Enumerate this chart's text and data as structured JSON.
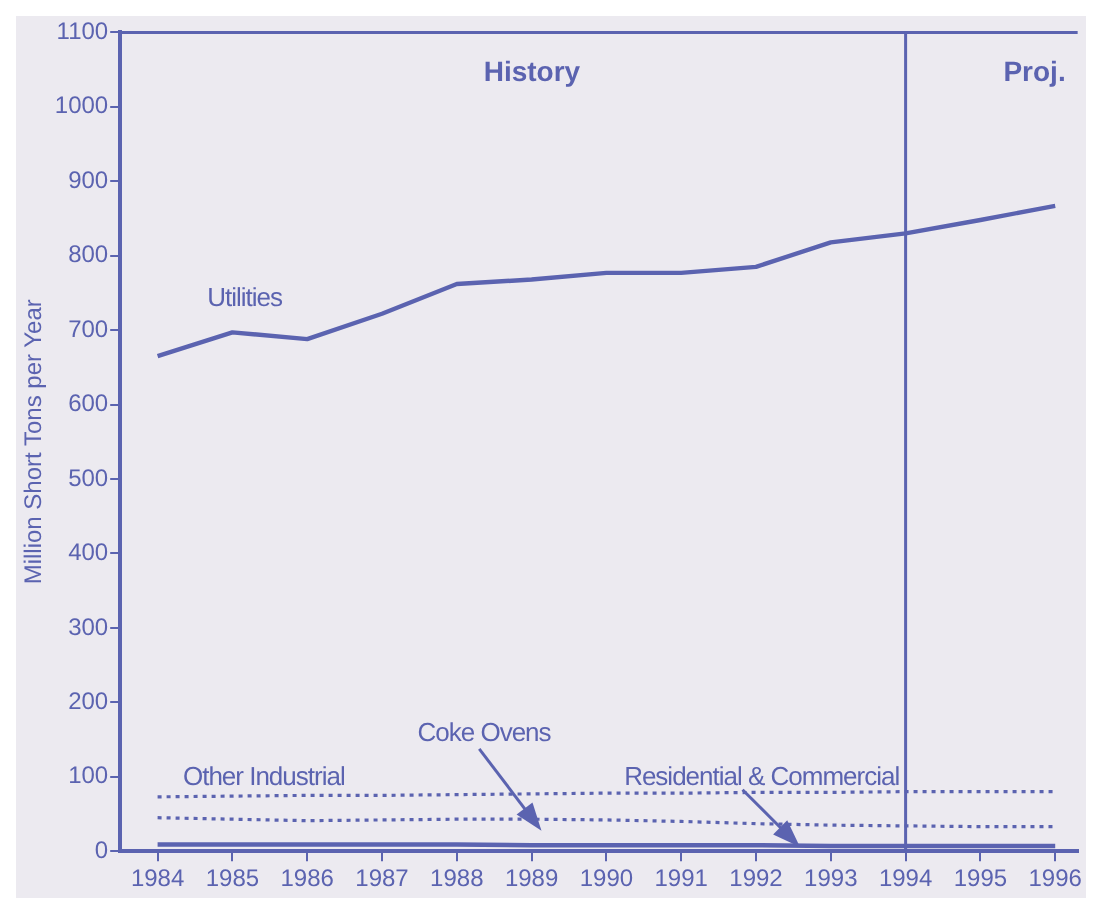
{
  "chart_data": {
    "type": "line",
    "ylabel": "Million Short Tons per Year",
    "x": [
      1984,
      1985,
      1986,
      1987,
      1988,
      1989,
      1990,
      1991,
      1992,
      1993,
      1994,
      1995,
      1996
    ],
    "xlim": [
      1983.5,
      1996.3
    ],
    "xticks": [
      1984,
      1985,
      1986,
      1987,
      1988,
      1989,
      1990,
      1991,
      1992,
      1993,
      1994,
      1995,
      1996
    ],
    "ylim": [
      0,
      1100
    ],
    "yticks": [
      0,
      100,
      200,
      300,
      400,
      500,
      600,
      700,
      800,
      900,
      1000,
      1100
    ],
    "series": [
      {
        "name": "Utilities",
        "color": "#5b63b0",
        "line_style": "solid",
        "values": [
          665,
          697,
          688,
          722,
          762,
          768,
          777,
          777,
          785,
          818,
          830,
          848,
          867
        ]
      },
      {
        "name": "Other Industrial",
        "color": "#5b63b0",
        "line_style": "dotted",
        "values": [
          73,
          74,
          75,
          75,
          76,
          77,
          78,
          78,
          79,
          79,
          80,
          80,
          80
        ]
      },
      {
        "name": "Coke Ovens",
        "color": "#5b63b0",
        "line_style": "dotted",
        "values": [
          45,
          43,
          41,
          42,
          43,
          43,
          42,
          40,
          37,
          35,
          34,
          33,
          33
        ]
      },
      {
        "name": "Residential & Commercial",
        "color": "#5b63b0",
        "line_style": "solid",
        "values": [
          9,
          9,
          9,
          9,
          9,
          8,
          8,
          8,
          8,
          7,
          7,
          7,
          7
        ]
      }
    ],
    "ref_lines": [
      {
        "axis": "x",
        "value": 1994,
        "color": "#5b63b0"
      }
    ],
    "annotations": [
      "History",
      "Proj."
    ],
    "grid": false,
    "legend": false,
    "marker": "none"
  }
}
